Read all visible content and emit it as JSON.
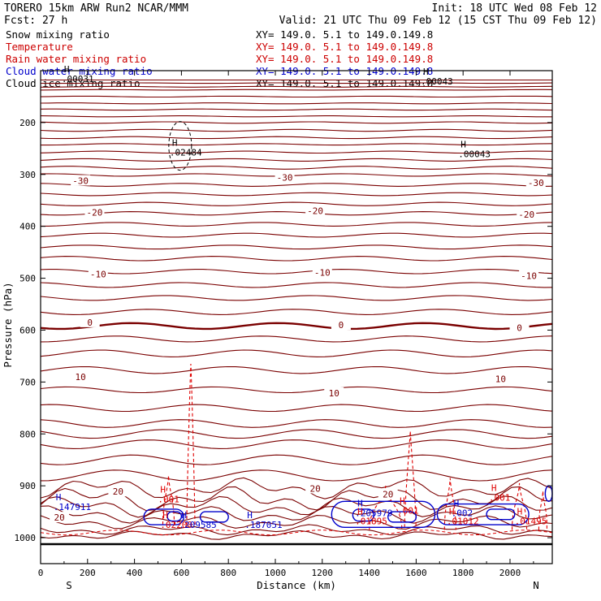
{
  "header": {
    "model": "TORERO  15km ARW   Run2    NCAR/MMM",
    "init": "Init: 18 UTC Wed 08 Feb 12",
    "fcst": "Fcst:   27 h",
    "valid": "Valid: 21 UTC Thu 09 Feb 12 (15 CST Thu 09 Feb 12)"
  },
  "legend": [
    {
      "label": "Snow mixing ratio",
      "xy": "XY= 149.0.  5.1 to 149.0.149.8",
      "color": "#000000"
    },
    {
      "label": "Temperature",
      "xy": "XY= 149.0.  5.1 to 149.0.149.8",
      "color": "#cc0000"
    },
    {
      "label": "Rain water mixing ratio",
      "xy": "XY= 149.0.  5.1 to 149.0.149.8",
      "color": "#cc0000"
    },
    {
      "label": "Cloud water mixing ratio",
      "xy": "XY= 149.0.  5.1 to 149.0.149.8",
      "color": "#0000cc"
    },
    {
      "label": "Cloud ice mixing ratio",
      "xy": "XY= 149.0.  5.1 to 149.0.149.8",
      "color": "#000000"
    }
  ],
  "chart_data": {
    "type": "contour-cross-section",
    "xlabel": "Distance (km)",
    "ylabel": "Pressure (hPa)",
    "xlim": [
      0,
      2180
    ],
    "ylim": [
      1050,
      100
    ],
    "x_ticks": [
      0,
      200,
      400,
      600,
      800,
      1000,
      1200,
      1400,
      1600,
      1800,
      2000
    ],
    "y_ticks": [
      200,
      300,
      400,
      500,
      600,
      700,
      800,
      900,
      1000
    ],
    "direction_labels": {
      "left": "S",
      "right": "N"
    },
    "colors": {
      "temperature": "#7a0000",
      "rain": "#e00000",
      "cloud_water": "#0000cc",
      "frame": "#000000"
    },
    "temperature_labels": [
      {
        "text": "-30",
        "x": 170,
        "p": 312
      },
      {
        "text": "-30",
        "x": 1040,
        "p": 306
      },
      {
        "text": "-30",
        "x": 2110,
        "p": 316
      },
      {
        "text": "-20",
        "x": 230,
        "p": 373
      },
      {
        "text": "-20",
        "x": 1170,
        "p": 370
      },
      {
        "text": "-20",
        "x": 2070,
        "p": 377
      },
      {
        "text": "-10",
        "x": 245,
        "p": 492
      },
      {
        "text": "-10",
        "x": 1200,
        "p": 489
      },
      {
        "text": "-10",
        "x": 2080,
        "p": 495
      },
      {
        "text": "0",
        "x": 210,
        "p": 585
      },
      {
        "text": "0",
        "x": 1280,
        "p": 590
      },
      {
        "text": "0",
        "x": 2040,
        "p": 595
      },
      {
        "text": "10",
        "x": 170,
        "p": 690
      },
      {
        "text": "10",
        "x": 1250,
        "p": 721
      },
      {
        "text": "10",
        "x": 1960,
        "p": 694
      },
      {
        "text": "20",
        "x": 330,
        "p": 911
      },
      {
        "text": "20",
        "x": 1170,
        "p": 905
      },
      {
        "text": "20",
        "x": 1480,
        "p": 916
      },
      {
        "text": "20",
        "x": 80,
        "p": 961
      }
    ],
    "extrema": [
      {
        "kind": "H",
        "value": ".00031",
        "x": 100,
        "p": 103,
        "color": "#000000"
      },
      {
        "kind": "H",
        "value": ".02484",
        "x": 560,
        "p": 245,
        "color": "#000000"
      },
      {
        "kind": "H",
        "value": ".00043",
        "x": 1790,
        "p": 248,
        "color": "#000000"
      },
      {
        "kind": "H",
        "value": ".00043",
        "x": 1630,
        "p": 108,
        "color": "#000000"
      },
      {
        "kind": "H",
        "value": ".147911",
        "x": 65,
        "p": 928,
        "color": "#0000cc"
      },
      {
        "kind": "H",
        "value": ".02200",
        "x": 520,
        "p": 962,
        "color": "#e00000"
      },
      {
        "kind": "H",
        "value": ".209585",
        "x": 600,
        "p": 962,
        "color": "#0000cc"
      },
      {
        "kind": "H",
        "value": ".187051",
        "x": 880,
        "p": 962,
        "color": "#0000cc"
      },
      {
        "kind": "H",
        "value": ".205979",
        "x": 1350,
        "p": 940,
        "color": "#0000cc"
      },
      {
        "kind": "H",
        "value": ".01895",
        "x": 1350,
        "p": 955,
        "color": "#e00000"
      },
      {
        "kind": "H",
        "value": ".001",
        "x": 510,
        "p": 913,
        "color": "#e00000"
      },
      {
        "kind": "H",
        "value": ".001",
        "x": 1530,
        "p": 935,
        "color": "#e00000"
      },
      {
        "kind": "H",
        "value": ".001",
        "x": 1920,
        "p": 910,
        "color": "#e00000"
      },
      {
        "kind": "H",
        "value": ".01012",
        "x": 1740,
        "p": 955,
        "color": "#e00000"
      },
      {
        "kind": "H",
        "value": ".01495",
        "x": 2030,
        "p": 955,
        "color": "#e00000"
      },
      {
        "kind": "H",
        "value": ".002",
        "x": 1760,
        "p": 940,
        "color": "#0000cc"
      }
    ]
  }
}
